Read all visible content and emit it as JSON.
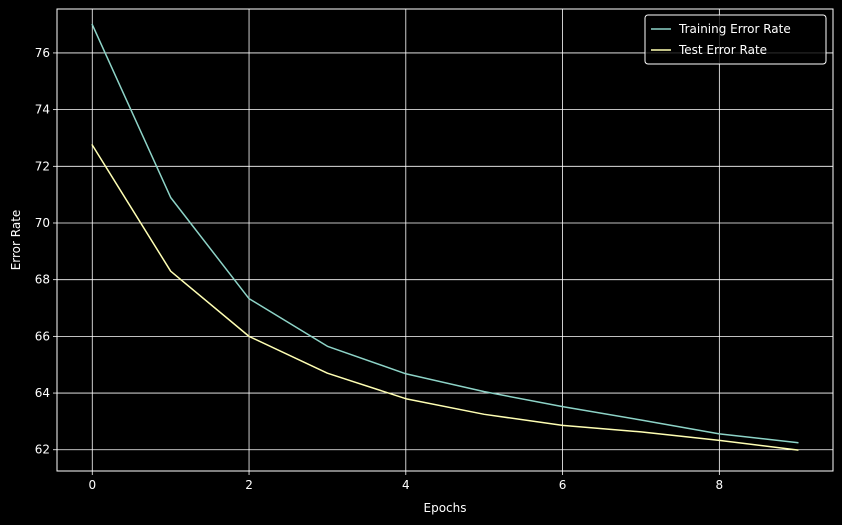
{
  "chart_data": {
    "type": "line",
    "title": "",
    "xlabel": "Epochs",
    "ylabel": "Error Rate",
    "x": [
      0,
      1,
      2,
      3,
      4,
      5,
      6,
      7,
      8,
      9
    ],
    "xlim": [
      -0.45,
      9.45
    ],
    "ylim": [
      61.25,
      77.55
    ],
    "xticks": [
      0,
      2,
      4,
      6,
      8
    ],
    "yticks": [
      62,
      64,
      66,
      68,
      70,
      72,
      74,
      76
    ],
    "grid": true,
    "legend": "top-right",
    "series": [
      {
        "name": "Training Error Rate",
        "color": "#8dd3c7",
        "values": [
          77.0,
          70.9,
          67.33,
          65.65,
          64.68,
          64.05,
          63.52,
          63.05,
          62.56,
          62.25
        ]
      },
      {
        "name": "Test Error Rate",
        "color": "#ffffb3",
        "values": [
          72.75,
          68.3,
          66.0,
          64.7,
          63.8,
          63.25,
          62.86,
          62.63,
          62.33,
          61.99
        ]
      }
    ]
  },
  "colors": {
    "background": "#000000",
    "grid": "#ffffff",
    "axes": "#ffffff",
    "legend_border": "#ffffff"
  }
}
